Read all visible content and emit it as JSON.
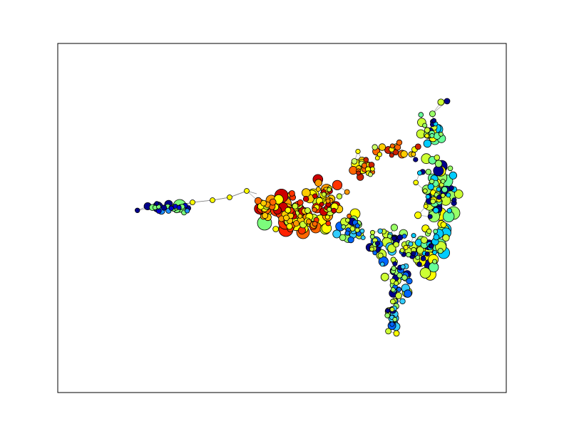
{
  "figure": {
    "background": "#ffffff",
    "axes_frame_color": "#000000"
  },
  "graph": {
    "type": "network",
    "ticks_visible": false,
    "node_outline_color": "#000000",
    "edge_color": "#808080",
    "colormap": "jet",
    "region_colors": {
      "left_tail_cluster": [
        "#00008b",
        "#0000cd",
        "#1e90ff",
        "#7cfc7c"
      ],
      "central_dense_cluster": [
        "#cc0000",
        "#ff3300",
        "#ff6600",
        "#ff9900",
        "#ffcc00",
        "#ffff00",
        "#ccff33"
      ],
      "upper_right_arc": [
        "#cc2200",
        "#ff6600",
        "#ffcc00",
        "#ffff00",
        "#ccff66"
      ],
      "right_lobe": [
        "#ffff00",
        "#ccff33",
        "#99ff66",
        "#66ff99",
        "#00ccff",
        "#00008b"
      ],
      "lower_spur": [
        "#ccff33",
        "#99ff66",
        "#33ccff",
        "#0066ff",
        "#00008b"
      ]
    }
  }
}
